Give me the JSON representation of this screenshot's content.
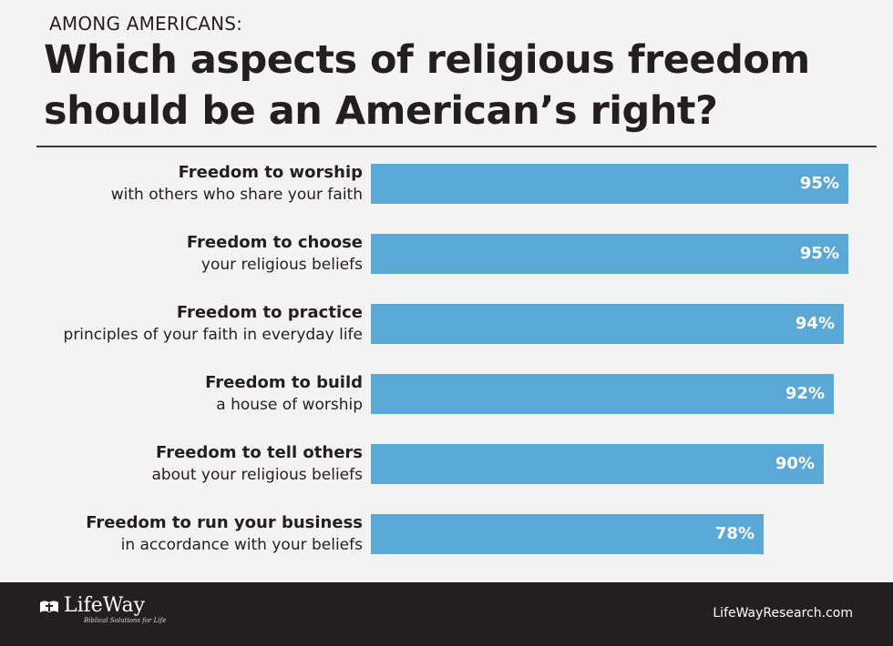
{
  "kicker": "AMONG AMERICANS:",
  "title_line1": "Which aspects of religious freedom",
  "title_line2": "should be an American’s right?",
  "colors": {
    "bar": "#5aa8d6",
    "footer": "#231f20",
    "text": "#231f20",
    "background": "#f3f3f3"
  },
  "chart_data": {
    "type": "bar",
    "orientation": "horizontal",
    "title": "Which aspects of religious freedom should be an American’s right?",
    "subtitle": "AMONG AMERICANS:",
    "categories": [
      "Freedom to worship with others who share your faith",
      "Freedom to choose your religious beliefs",
      "Freedom to practice principles of your faith in everyday life",
      "Freedom to build a house of worship",
      "Freedom to tell others about your religious beliefs",
      "Freedom to run your business in accordance with your beliefs"
    ],
    "labels": [
      {
        "bold": "Freedom to worship",
        "rest": "with others who share your faith"
      },
      {
        "bold": "Freedom to choose",
        "rest": "your religious beliefs"
      },
      {
        "bold": "Freedom to practice",
        "rest": "principles of your faith in everyday life"
      },
      {
        "bold": "Freedom to build",
        "rest": "a house of worship"
      },
      {
        "bold": "Freedom to tell others",
        "rest": "about your religious beliefs"
      },
      {
        "bold": "Freedom to run your business",
        "rest": "in accordance with your beliefs"
      }
    ],
    "values": [
      95,
      95,
      94,
      92,
      90,
      78
    ],
    "value_labels": [
      "95%",
      "95%",
      "94%",
      "92%",
      "90%",
      "78%"
    ],
    "unit": "%",
    "xlim": [
      0,
      100
    ],
    "grid": false,
    "legend": "none"
  },
  "footer": {
    "logo_text": "LifeWay",
    "logo_tagline": "Biblical Solutions for Life",
    "site": "LifeWayResearch.com"
  }
}
